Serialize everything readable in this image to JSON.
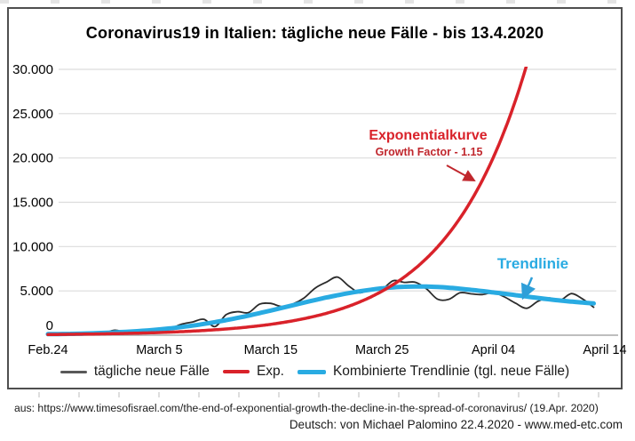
{
  "chart_data": {
    "type": "line",
    "title": "Coronavirus19 in Italien: tägliche neue Fälle - bis 13.4.2020",
    "xlabel": "",
    "ylabel": "",
    "ylim": [
      0,
      30000
    ],
    "grid": "horizontal",
    "legend_position": "bottom",
    "x_start_date": "Feb 24 2020",
    "x_end_date": "April 13 2020",
    "x_tick_labels": [
      "Feb.24",
      "March 5",
      "March 15",
      "March 25",
      "April 04",
      "April 14"
    ],
    "x_tick_days": [
      0,
      10,
      20,
      30,
      40,
      50
    ],
    "y_tick_labels": [
      "0",
      "5.000",
      "10.000",
      "15.000",
      "20.000",
      "25.000",
      "30.000"
    ],
    "y_tick_values": [
      0,
      5000,
      10000,
      15000,
      20000,
      25000,
      30000
    ],
    "series": [
      {
        "name": "tägliche neue Fälle",
        "type": "line",
        "color": "#2b2b2b",
        "values": [
          221,
          93,
          78,
          250,
          238,
          240,
          561,
          347,
          466,
          587,
          769,
          778,
          1247,
          1492,
          1797,
          977,
          2313,
          2651,
          2547,
          3497,
          3590,
          3233,
          3526,
          4207,
          5322,
          5986,
          6557,
          5560,
          4789,
          5249,
          5210,
          6153,
          5959,
          5974,
          5217,
          4050,
          4053,
          4782,
          4668,
          4585,
          4805,
          4316,
          3599,
          3039,
          3836,
          4204,
          3951,
          4694,
          4092,
          3153
        ]
      },
      {
        "name": "Kombinierte Trendlinie (tgl. neue Fälle)",
        "type": "smooth",
        "color": "#29abe2",
        "values": [
          120,
          135,
          155,
          180,
          215,
          260,
          315,
          380,
          455,
          545,
          650,
          775,
          920,
          1085,
          1270,
          1475,
          1700,
          1945,
          2210,
          2490,
          2780,
          3080,
          3380,
          3680,
          3970,
          4250,
          4510,
          4750,
          4960,
          5140,
          5290,
          5400,
          5470,
          5500,
          5490,
          5440,
          5360,
          5250,
          5120,
          4980,
          4830,
          4680,
          4520,
          4360,
          4200,
          4050,
          3910,
          3790,
          3680,
          3580
        ]
      },
      {
        "name": "Exp.",
        "type": "exponential",
        "color": "#d9222a",
        "start_value": 75,
        "growth_factor": 1.15
      }
    ],
    "legend": [
      {
        "label": "tägliche neue Fälle",
        "color": "#595959"
      },
      {
        "label": "Exp.",
        "color": "#d9222a"
      },
      {
        "label": "Kombinierte Trendlinie (tgl. neue Fälle)",
        "color": "#29abe2"
      }
    ],
    "annotations": {
      "exp_label": "Exponentialkurve",
      "exp_sublabel": "Growth Factor - 1.15",
      "trend_label": "Trendlinie"
    }
  },
  "footer": {
    "source_line": "aus: https://www.timesofisrael.com/the-end-of-exponential-growth-the-decline-in-the-spread-of-coronavirus/ (19.Apr. 2020)",
    "credit_line": "Deutsch: von Michael Palomino 22.4.2020 - www.med-etc.com"
  }
}
